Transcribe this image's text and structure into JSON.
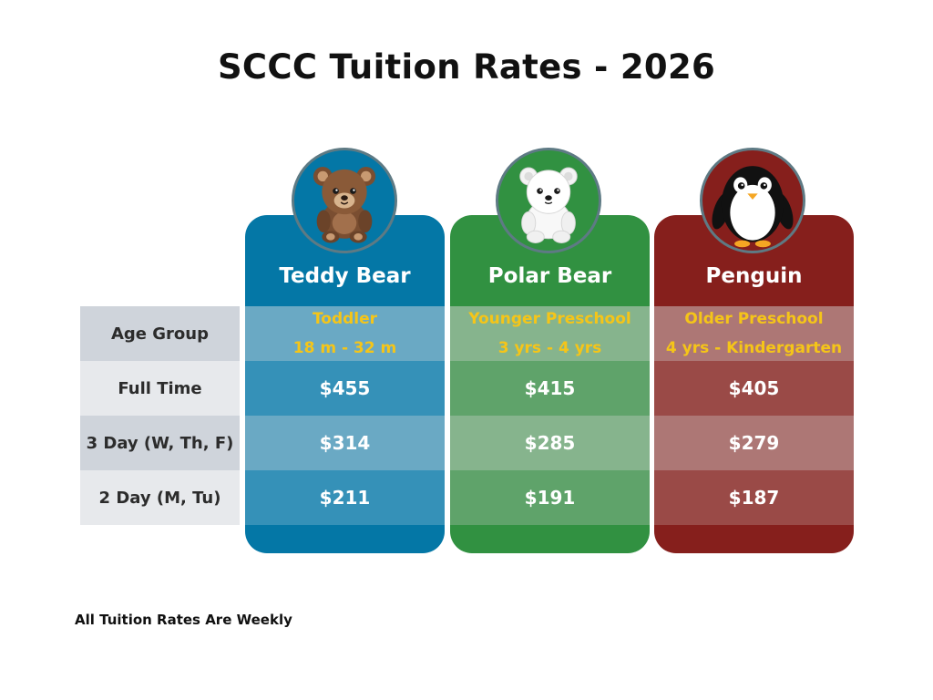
{
  "title": "SCCC Tuition Rates - 2026",
  "row_labels": [
    "Age Group",
    "Full Time",
    "3 Day (W, Th, F)",
    "2 Day (M, Tu)"
  ],
  "columns": [
    {
      "name": "Teddy Bear",
      "icon": "teddy-bear-icon",
      "color": "#0477a6",
      "age_line1": "Toddler",
      "age_line2": "18 m - 32 m",
      "full_time": "$455",
      "three_day": "$314",
      "two_day": "$211"
    },
    {
      "name": "Polar Bear",
      "icon": "polar-bear-icon",
      "color": "#319141",
      "age_line1": "Younger Preschool",
      "age_line2": "3 yrs - 4 yrs",
      "full_time": "$415",
      "three_day": "$285",
      "two_day": "$191"
    },
    {
      "name": "Penguin",
      "icon": "penguin-icon",
      "color": "#861f1c",
      "age_line1": "Older Preschool",
      "age_line2": "4 yrs - Kindergarten",
      "full_time": "$405",
      "three_day": "$279",
      "two_day": "$187"
    }
  ],
  "footnote": "All Tuition Rates Are Weekly"
}
